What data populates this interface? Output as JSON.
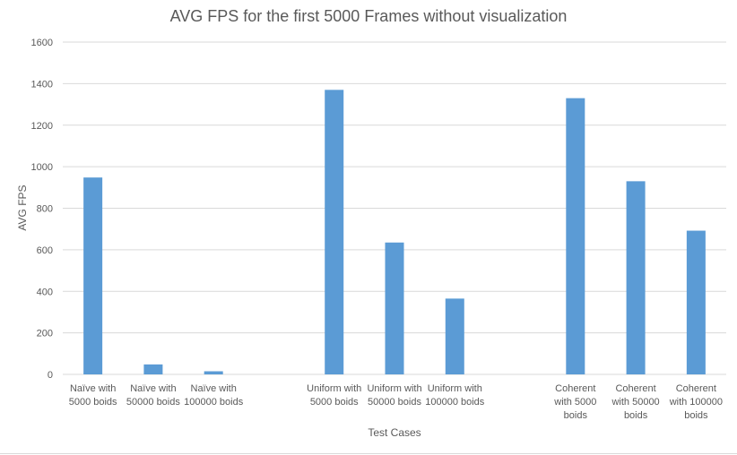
{
  "chart_data": {
    "type": "bar",
    "title": "AVG FPS for the first 5000 Frames without visualization",
    "xlabel": "Test Cases",
    "ylabel": "AVG FPS",
    "ylim": [
      0,
      1600
    ],
    "yticks": [
      0,
      200,
      400,
      600,
      800,
      1000,
      1200,
      1400,
      1600
    ],
    "grid": true,
    "legend": "none",
    "bar_color": "#5B9BD5",
    "categories": [
      [
        "Naïve with",
        "5000 boids"
      ],
      [
        "Naïve with",
        "50000 boids"
      ],
      [
        "Naïve with",
        "100000 boids"
      ],
      [],
      [
        "Uniform with",
        "5000 boids"
      ],
      [
        "Uniform with",
        "50000 boids"
      ],
      [
        "Uniform with",
        "100000 boids"
      ],
      [],
      [
        "Coherent",
        "with 5000",
        "boids"
      ],
      [
        "Coherent",
        "with 50000",
        "boids"
      ],
      [
        "Coherent",
        "with 100000",
        "boids"
      ]
    ],
    "values": [
      948,
      48,
      15,
      null,
      1370,
      635,
      365,
      null,
      1330,
      930,
      692
    ]
  }
}
